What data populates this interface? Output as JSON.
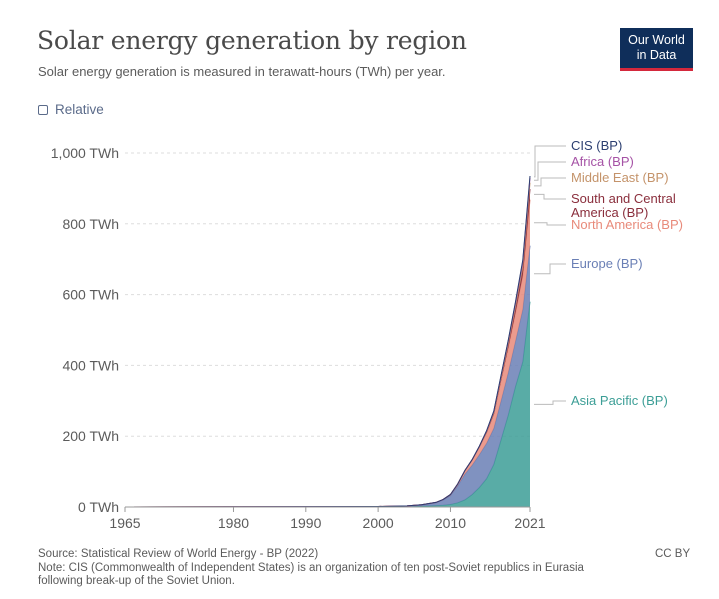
{
  "header": {
    "title": "Solar energy generation by region",
    "subtitle": "Solar energy generation is measured in terawatt-hours (TWh) per year.",
    "logo_line1": "Our World",
    "logo_line2": "in Data",
    "relative_label": "Relative"
  },
  "footer": {
    "source": "Source: Statistical Review of World Energy - BP (2022)",
    "note_line1": "Note: CIS (Commonwealth of Independent States) is an organization of ten post-Soviet republics in Eurasia",
    "note_line2": "following break-up of the Soviet Union.",
    "license": "CC BY"
  },
  "chart_data": {
    "type": "area",
    "stacked": true,
    "x": [
      1965,
      2000,
      2004,
      2006,
      2008,
      2009,
      2010,
      2011,
      2012,
      2013,
      2014,
      2015,
      2016,
      2017,
      2018,
      2019,
      2020,
      2021
    ],
    "series": [
      {
        "name": "Asia Pacific (BP)",
        "color": "#3c9e96",
        "values": [
          0,
          0.8,
          1.5,
          2.5,
          4,
          5,
          7,
          12,
          20,
          35,
          55,
          80,
          120,
          190,
          260,
          340,
          410,
          580
        ]
      },
      {
        "name": "Europe (BP)",
        "color": "#6a7fb5",
        "values": [
          0,
          0.2,
          1,
          3,
          8,
          15,
          25,
          48,
          73,
          83,
          93,
          100,
          102,
          110,
          120,
          128,
          148,
          158
        ]
      },
      {
        "name": "North America (BP)",
        "color": "#e88a7a",
        "values": [
          0,
          0.5,
          0.6,
          0.7,
          1,
          1.5,
          3,
          5,
          10,
          15,
          22,
          31,
          41,
          58,
          70,
          80,
          95,
          130
        ]
      },
      {
        "name": "South and Central America (BP)",
        "color": "#8a2e3c",
        "values": [
          0,
          0,
          0,
          0,
          0,
          0,
          0,
          0,
          0,
          0,
          0.5,
          1,
          2,
          5,
          8,
          12,
          17,
          30
        ]
      },
      {
        "name": "Middle East (BP)",
        "color": "#c4936a",
        "values": [
          0,
          0,
          0,
          0,
          0,
          0,
          0,
          0,
          0,
          0.2,
          0.5,
          1,
          2,
          3,
          5,
          8,
          12,
          18
        ]
      },
      {
        "name": "Africa (BP)",
        "color": "#a552a5",
        "values": [
          0,
          0,
          0,
          0,
          0,
          0,
          0,
          0,
          0,
          0.5,
          1,
          2,
          3,
          5,
          7,
          9,
          12,
          14
        ]
      },
      {
        "name": "CIS (BP)",
        "color": "#2b3e70",
        "values": [
          0,
          0,
          0,
          0,
          0,
          0,
          0,
          0,
          0,
          0,
          0,
          0.5,
          1,
          1.5,
          2,
          3,
          4,
          5
        ]
      }
    ],
    "y_ticks": [
      {
        "value": 0,
        "label": "0 TWh"
      },
      {
        "value": 200,
        "label": "200 TWh"
      },
      {
        "value": 400,
        "label": "400 TWh"
      },
      {
        "value": 600,
        "label": "600 TWh"
      },
      {
        "value": 800,
        "label": "800 TWh"
      },
      {
        "value": 1000,
        "label": "1,000 TWh"
      }
    ],
    "x_ticks": [
      {
        "value": 1965,
        "label": "1965"
      },
      {
        "value": 1980,
        "label": "1980"
      },
      {
        "value": 1990,
        "label": "1990"
      },
      {
        "value": 2000,
        "label": "2000"
      },
      {
        "value": 2010,
        "label": "2010"
      },
      {
        "value": 2021,
        "label": "2021"
      }
    ],
    "xlim": [
      1965,
      2021
    ],
    "ylim": [
      0,
      1000
    ],
    "grid": "horizontal-dashed",
    "legend": "right"
  }
}
